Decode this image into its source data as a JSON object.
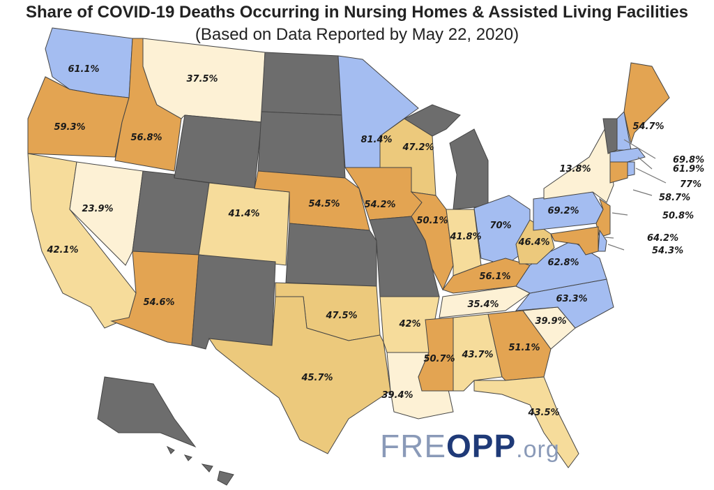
{
  "chart_data": {
    "type": "choropleth",
    "title": "Share of COVID-19 Deaths Occurring in Nursing Homes & Assisted Living Facilities",
    "subtitle": "(Based on Data Reported by May 22, 2020)",
    "unit": "%",
    "values": {
      "WA": 61.1,
      "OR": 59.3,
      "CA": 42.1,
      "ID": 56.8,
      "NV": 23.9,
      "MT": 37.5,
      "WY": null,
      "UT": null,
      "AZ": 54.6,
      "CO": 41.4,
      "NM": null,
      "ND": null,
      "SD": null,
      "NE": 54.5,
      "KS": null,
      "OK": 47.5,
      "TX": 45.7,
      "MN": 81.4,
      "IA": 54.2,
      "MO": null,
      "AR": 42,
      "LA": 39.4,
      "WI": 47.2,
      "IL": 50.1,
      "MI": null,
      "IN": 41.8,
      "OH": 70,
      "KY": 56.1,
      "TN": 35.4,
      "MS": 50.7,
      "AL": 43.7,
      "GA": 51.1,
      "FL": 43.5,
      "SC": 39.9,
      "NC": 63.3,
      "VA": 62.8,
      "WV": 46.4,
      "PA": 69.2,
      "NY": 13.8,
      "VT": null,
      "NH": 69.8,
      "ME": 54.7,
      "MA": 61.9,
      "RI": 77,
      "CT": 58.7,
      "NJ": 50.8,
      "DE": 64.2,
      "MD": 54.3,
      "AK": null,
      "HI": null
    },
    "labels": {
      "WA": "61.1%",
      "OR": "59.3%",
      "CA": "42.1%",
      "ID": "56.8%",
      "NV": "23.9%",
      "MT": "37.5%",
      "AZ": "54.6%",
      "CO": "41.4%",
      "NE": "54.5%",
      "OK": "47.5%",
      "TX": "45.7%",
      "MN": "81.4%",
      "IA": "54.2%",
      "AR": "42%",
      "LA": "39.4%",
      "WI": "47.2%",
      "IL": "50.1%",
      "IN": "41.8%",
      "OH": "70%",
      "KY": "56.1%",
      "TN": "35.4%",
      "MS": "50.7%",
      "AL": "43.7%",
      "GA": "51.1%",
      "FL": "43.5%",
      "SC": "39.9%",
      "NC": "63.3%",
      "VA": "62.8%",
      "WV": "46.4%",
      "PA": "69.2%",
      "NY": "13.8%",
      "NH": "69.8%",
      "ME": "54.7%",
      "MA": "61.9%",
      "RI": "77%",
      "CT": "58.7%",
      "NJ": "50.8%",
      "DE": "64.2%",
      "MD": "54.3%"
    },
    "colors": {
      "ge60": "#a4bdf1",
      "50to60": "#e3a452",
      "45to50": "#ecc97c",
      "40to45": "#f6dc9b",
      "lt40": "#fdf1d5",
      "no_data": "#6d6d6d"
    }
  },
  "logo": {
    "part1": "FRE",
    "part2": "OPP",
    "part3": ".org"
  }
}
